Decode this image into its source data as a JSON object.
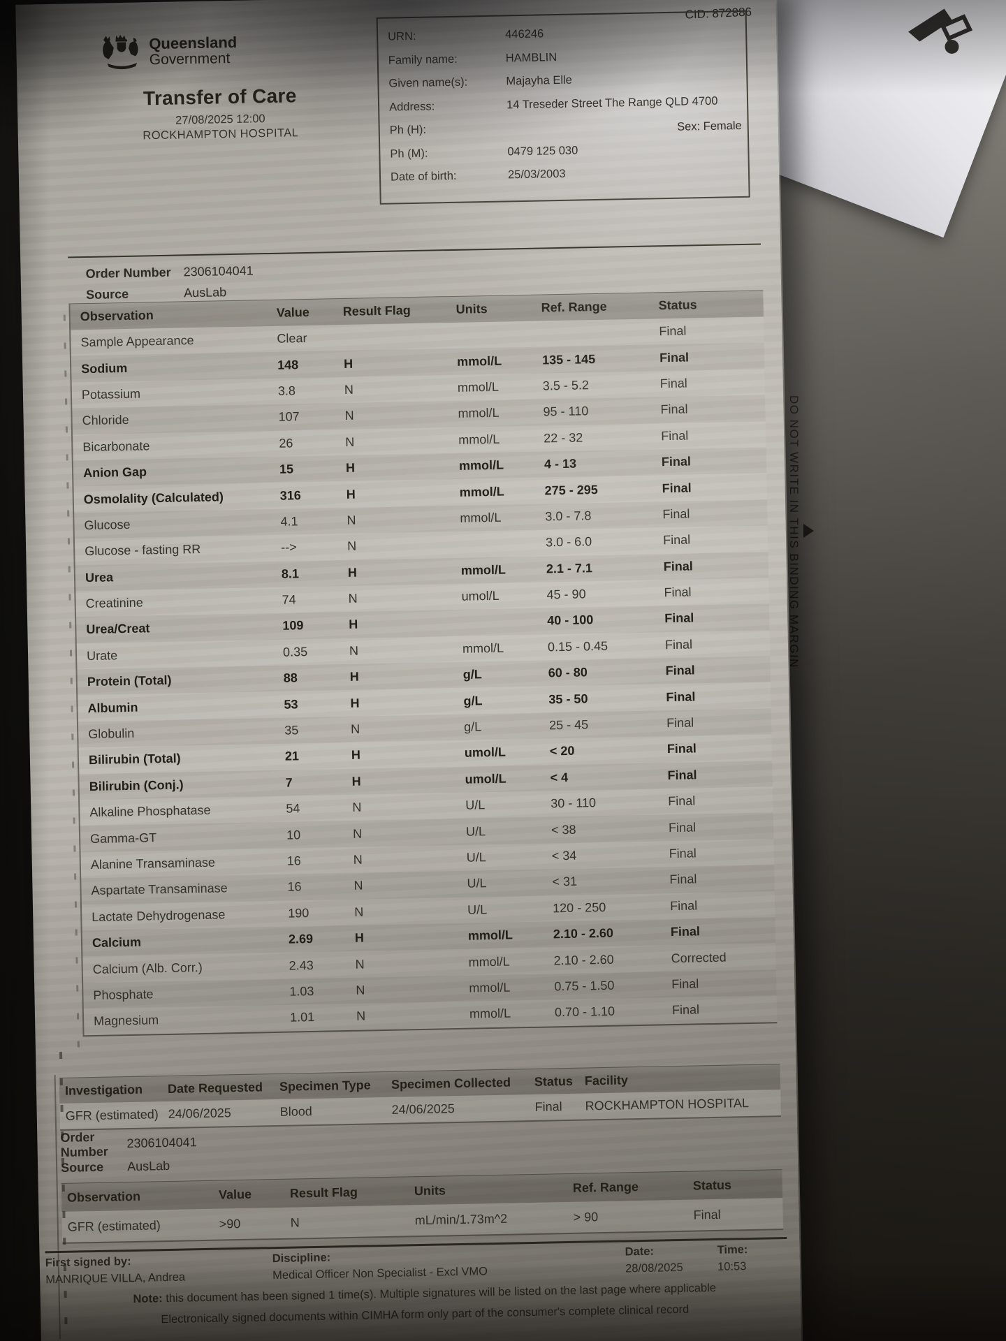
{
  "photo": {
    "binding_margin": {
      "text": "DO NOT WRITE IN THIS BINDING MARGIN",
      "arrow_icon": "right-triangle"
    }
  },
  "colors": {
    "paper": "#b6b2ab",
    "ink": "#2e2b24",
    "header_band": "#9b968e",
    "background": "#141311"
  },
  "document": {
    "cid": "CID: 872886",
    "agency": {
      "line1": "Queensland",
      "line2": "Government"
    },
    "title": "Transfer of Care",
    "datetime": "27/08/2025 12:00",
    "facility": "ROCKHAMPTON HOSPITAL",
    "patient": {
      "fields": [
        {
          "label": "URN:",
          "value": "446246"
        },
        {
          "label": "Family name:",
          "value": "HAMBLIN"
        },
        {
          "label": "Given name(s):",
          "value": "Majayha Elle"
        },
        {
          "label": "Address:",
          "value": "14 Treseder Street The Range QLD 4700"
        },
        {
          "label": "Ph (H):",
          "value": ""
        },
        {
          "label": "Ph (M):",
          "value": "0479 125 030"
        },
        {
          "label": "Date of birth:",
          "value": "25/03/2003"
        }
      ],
      "sex_label": "Sex: Female"
    },
    "order1": {
      "number_label": "Order Number",
      "number": "2306104041",
      "source_label": "Source",
      "source": "AusLab"
    },
    "results_table": {
      "headers": [
        "Observation",
        "Value",
        "Result Flag",
        "Units",
        "Ref. Range",
        "Status"
      ],
      "rows": [
        {
          "observation": "Sample Appearance",
          "value": "Clear",
          "flag": "",
          "units": "",
          "ref_range": "",
          "status": "Final",
          "emphasis": false
        },
        {
          "observation": "Sodium",
          "value": "148",
          "flag": "H",
          "units": "mmol/L",
          "ref_range": "135 - 145",
          "status": "Final",
          "emphasis": true
        },
        {
          "observation": "Potassium",
          "value": "3.8",
          "flag": "N",
          "units": "mmol/L",
          "ref_range": "3.5 - 5.2",
          "status": "Final",
          "emphasis": false
        },
        {
          "observation": "Chloride",
          "value": "107",
          "flag": "N",
          "units": "mmol/L",
          "ref_range": "95 - 110",
          "status": "Final",
          "emphasis": false
        },
        {
          "observation": "Bicarbonate",
          "value": "26",
          "flag": "N",
          "units": "mmol/L",
          "ref_range": "22 - 32",
          "status": "Final",
          "emphasis": false
        },
        {
          "observation": "Anion Gap",
          "value": "15",
          "flag": "H",
          "units": "mmol/L",
          "ref_range": "4 - 13",
          "status": "Final",
          "emphasis": true
        },
        {
          "observation": "Osmolality (Calculated)",
          "value": "316",
          "flag": "H",
          "units": "mmol/L",
          "ref_range": "275 - 295",
          "status": "Final",
          "emphasis": true
        },
        {
          "observation": "Glucose",
          "value": "4.1",
          "flag": "N",
          "units": "mmol/L",
          "ref_range": "3.0 - 7.8",
          "status": "Final",
          "emphasis": false
        },
        {
          "observation": "Glucose - fasting RR",
          "value": "-->",
          "flag": "N",
          "units": "",
          "ref_range": "3.0 - 6.0",
          "status": "Final",
          "emphasis": false
        },
        {
          "observation": "Urea",
          "value": "8.1",
          "flag": "H",
          "units": "mmol/L",
          "ref_range": "2.1 - 7.1",
          "status": "Final",
          "emphasis": true
        },
        {
          "observation": "Creatinine",
          "value": "74",
          "flag": "N",
          "units": "umol/L",
          "ref_range": "45 - 90",
          "status": "Final",
          "emphasis": false
        },
        {
          "observation": "Urea/Creat",
          "value": "109",
          "flag": "H",
          "units": "",
          "ref_range": "40 - 100",
          "status": "Final",
          "emphasis": true
        },
        {
          "observation": "Urate",
          "value": "0.35",
          "flag": "N",
          "units": "mmol/L",
          "ref_range": "0.15 - 0.45",
          "status": "Final",
          "emphasis": false
        },
        {
          "observation": "Protein (Total)",
          "value": "88",
          "flag": "H",
          "units": "g/L",
          "ref_range": "60 - 80",
          "status": "Final",
          "emphasis": true
        },
        {
          "observation": "Albumin",
          "value": "53",
          "flag": "H",
          "units": "g/L",
          "ref_range": "35 - 50",
          "status": "Final",
          "emphasis": true
        },
        {
          "observation": "Globulin",
          "value": "35",
          "flag": "N",
          "units": "g/L",
          "ref_range": "25 - 45",
          "status": "Final",
          "emphasis": false
        },
        {
          "observation": "Bilirubin (Total)",
          "value": "21",
          "flag": "H",
          "units": "umol/L",
          "ref_range": "< 20",
          "status": "Final",
          "emphasis": true
        },
        {
          "observation": "Bilirubin (Conj.)",
          "value": "7",
          "flag": "H",
          "units": "umol/L",
          "ref_range": "< 4",
          "status": "Final",
          "emphasis": true
        },
        {
          "observation": "Alkaline Phosphatase",
          "value": "54",
          "flag": "N",
          "units": "U/L",
          "ref_range": "30 - 110",
          "status": "Final",
          "emphasis": false
        },
        {
          "observation": "Gamma-GT",
          "value": "10",
          "flag": "N",
          "units": "U/L",
          "ref_range": "< 38",
          "status": "Final",
          "emphasis": false
        },
        {
          "observation": "Alanine Transaminase",
          "value": "16",
          "flag": "N",
          "units": "U/L",
          "ref_range": "< 34",
          "status": "Final",
          "emphasis": false
        },
        {
          "observation": "Aspartate Transaminase",
          "value": "16",
          "flag": "N",
          "units": "U/L",
          "ref_range": "< 31",
          "status": "Final",
          "emphasis": false
        },
        {
          "observation": "Lactate Dehydrogenase",
          "value": "190",
          "flag": "N",
          "units": "U/L",
          "ref_range": "120 - 250",
          "status": "Final",
          "emphasis": false
        },
        {
          "observation": "Calcium",
          "value": "2.69",
          "flag": "H",
          "units": "mmol/L",
          "ref_range": "2.10 - 2.60",
          "status": "Final",
          "emphasis": true
        },
        {
          "observation": "Calcium (Alb. Corr.)",
          "value": "2.43",
          "flag": "N",
          "units": "mmol/L",
          "ref_range": "2.10 - 2.60",
          "status": "Corrected",
          "emphasis": false
        },
        {
          "observation": "Phosphate",
          "value": "1.03",
          "flag": "N",
          "units": "mmol/L",
          "ref_range": "0.75 - 1.50",
          "status": "Final",
          "emphasis": false
        },
        {
          "observation": "Magnesium",
          "value": "1.01",
          "flag": "N",
          "units": "mmol/L",
          "ref_range": "0.70 - 1.10",
          "status": "Final",
          "emphasis": false
        }
      ]
    },
    "investigation_table": {
      "headers": [
        "Investigation",
        "Date Requested",
        "Specimen Type",
        "Specimen Collected",
        "Status",
        "Facility"
      ],
      "rows": [
        {
          "investigation": "GFR (estimated)",
          "date_requested": "24/06/2025",
          "specimen_type": "Blood",
          "specimen_collected": "24/06/2025",
          "status": "Final",
          "facility": "ROCKHAMPTON HOSPITAL"
        }
      ]
    },
    "order2": {
      "number_label": "Order Number",
      "number": "2306104041",
      "source_label": "Source",
      "source": "AusLab"
    },
    "gfr_table": {
      "headers": [
        "Observation",
        "Value",
        "Result Flag",
        "Units",
        "Ref. Range",
        "Status"
      ],
      "rows": [
        {
          "observation": "GFR (estimated)",
          "value": ">90",
          "flag": "N",
          "units": "mL/min/1.73m^2",
          "ref_range": "> 90",
          "status": "Final",
          "emphasis": false
        }
      ]
    },
    "signature": {
      "first_signed_by_label": "First signed by:",
      "first_signed_by": "MANRIQUE VILLA, Andrea",
      "discipline_label": "Discipline:",
      "discipline": "Medical Officer Non Specialist - Excl VMO",
      "date_label": "Date:",
      "date": "28/08/2025",
      "time_label": "Time:",
      "time": "10:53",
      "note_prefix": "Note:",
      "note_line1": "this document has been signed 1 time(s). Multiple signatures will be listed on the last page where applicable",
      "note_line2": "Electronically signed documents within CIMHA form only part of the consumer's complete clinical record"
    }
  }
}
